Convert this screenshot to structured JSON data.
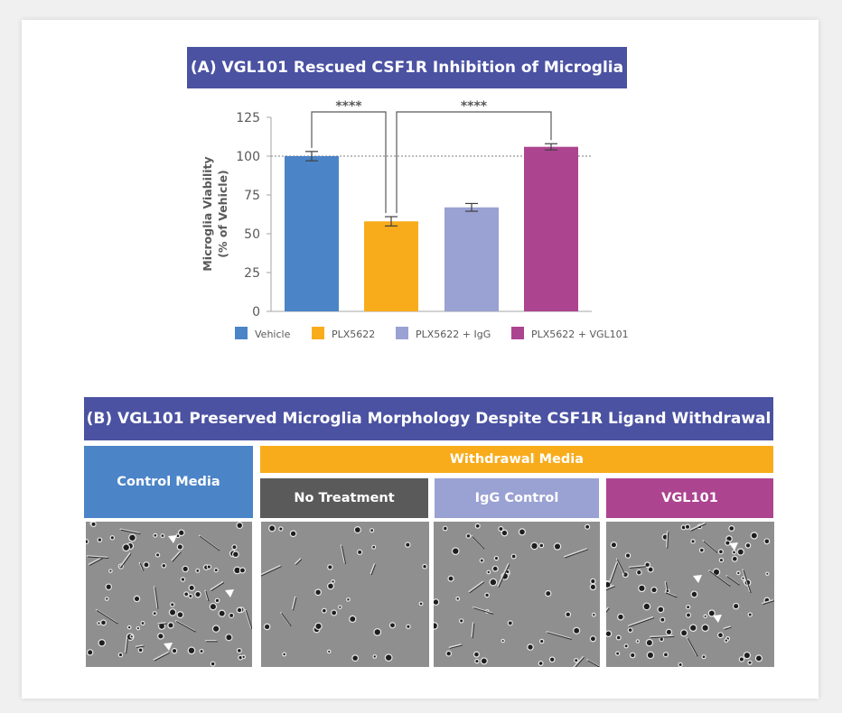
{
  "panel_a": {
    "title": "(A) VGL101 Rescued CSF1R Inhibition of Microglia"
  },
  "panel_b": {
    "title": "(B) VGL101 Preserved Microglia Morphology Despite CSF1R Ligand Withdrawal",
    "headers": {
      "control": "Control Media",
      "withdrawal": "Withdrawal Media",
      "no_treatment": "No Treatment",
      "igg_control": "IgG Control",
      "vgl101": "VGL101"
    }
  },
  "chart_data": {
    "type": "bar",
    "categories": [
      "Vehicle",
      "PLX5622",
      "PLX5622 + IgG",
      "PLX5622 + VGL101"
    ],
    "values": [
      100,
      58,
      67,
      106
    ],
    "errors": [
      3,
      3,
      2.5,
      2
    ],
    "colors": [
      "#4b84c7",
      "#f8ac1c",
      "#9aa1d3",
      "#ac4490"
    ],
    "ylabel_lines": [
      "Microglia Viability",
      "(% of Vehicle)"
    ],
    "ylim": [
      0,
      125
    ],
    "yticks": [
      0,
      25,
      50,
      75,
      100,
      125
    ],
    "reference_line": 100,
    "legend": {
      "position": "bottom",
      "entries": [
        "Vehicle",
        "PLX5622",
        "PLX5622 + IgG",
        "PLX5622 + VGL101"
      ]
    },
    "significance": [
      {
        "from": 0,
        "to": 1,
        "label": "****"
      },
      {
        "from": 1,
        "to": 3,
        "label": "****"
      }
    ],
    "grid": false
  },
  "micrographs": [
    {
      "name": "control-media-micrograph",
      "density": "high",
      "arrowheads": 3
    },
    {
      "name": "no-treatment-micrograph",
      "density": "low",
      "arrowheads": 0
    },
    {
      "name": "igg-control-micrograph",
      "density": "medium",
      "arrowheads": 0
    },
    {
      "name": "vgl101-micrograph",
      "density": "high",
      "arrowheads": 3
    }
  ]
}
